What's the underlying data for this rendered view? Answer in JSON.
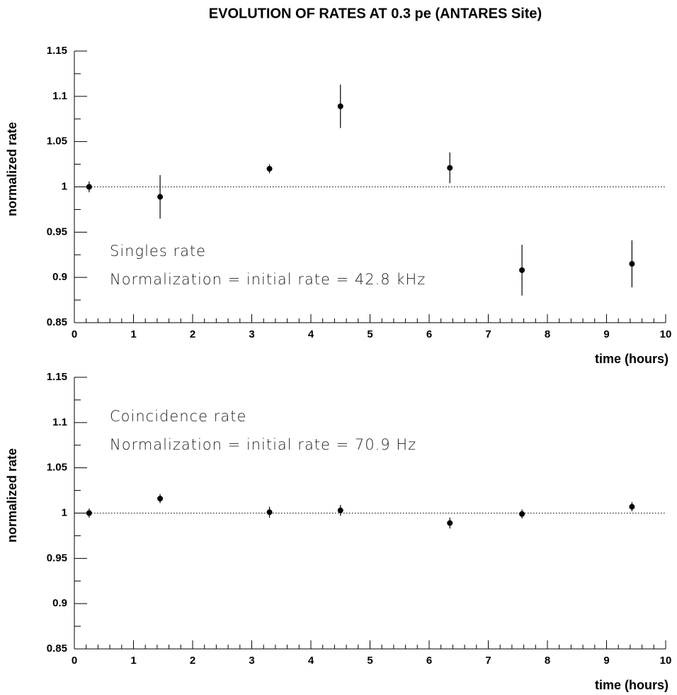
{
  "title": "EVOLUTION OF RATES AT 0.3 pe (ANTARES Site)",
  "chart_data": [
    {
      "type": "scatter",
      "x_label": "time (hours)",
      "y_label": "normalized rate",
      "annotations": [
        "Singles rate",
        "Normalization = initial rate = 42.8 kHz"
      ],
      "x": [
        0.25,
        1.45,
        3.3,
        4.5,
        6.35,
        7.57,
        9.43
      ],
      "values": [
        1.0,
        0.989,
        1.02,
        1.089,
        1.021,
        0.908,
        0.915
      ],
      "errors": [
        0.006,
        0.024,
        0.005,
        0.024,
        0.017,
        0.028,
        0.026
      ],
      "color": "#000000",
      "reference_line": 1,
      "xlim": [
        0,
        10
      ],
      "xticks": [
        0,
        1,
        2,
        3,
        4,
        5,
        6,
        7,
        8,
        9,
        10
      ],
      "ylim": [
        0.85,
        1.15
      ],
      "yticks": [
        0.85,
        0.9,
        0.95,
        1,
        1.05,
        1.1,
        1.15
      ]
    },
    {
      "type": "scatter",
      "x_label": "time (hours)",
      "y_label": "normalized rate",
      "annotations": [
        "Coincidence rate",
        "Normalization = initial rate = 70.9 Hz"
      ],
      "x": [
        0.25,
        1.45,
        3.3,
        4.5,
        6.35,
        7.57,
        9.43
      ],
      "values": [
        1.0,
        1.016,
        1.001,
        1.003,
        0.989,
        0.999,
        1.007
      ],
      "errors": [
        0.005,
        0.005,
        0.006,
        0.006,
        0.006,
        0.005,
        0.005
      ],
      "color": "#000000",
      "reference_line": 1,
      "xlim": [
        0,
        10
      ],
      "xticks": [
        0,
        1,
        2,
        3,
        4,
        5,
        6,
        7,
        8,
        9,
        10
      ],
      "ylim": [
        0.85,
        1.15
      ],
      "yticks": [
        0.85,
        0.9,
        0.95,
        1,
        1.05,
        1.1,
        1.15
      ]
    }
  ]
}
